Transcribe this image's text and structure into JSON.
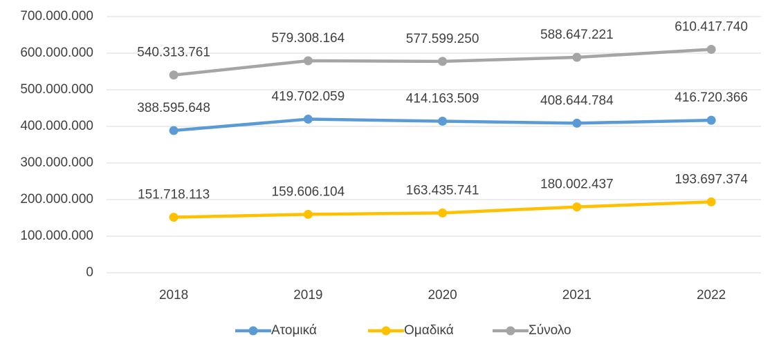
{
  "chart_data": {
    "type": "line",
    "categories": [
      "2018",
      "2019",
      "2020",
      "2021",
      "2022"
    ],
    "series": [
      {
        "name": "Ατομικά",
        "color": "#5b9bd5",
        "values": [
          388595648,
          419702059,
          414163509,
          408644784,
          416720366
        ],
        "value_labels": [
          "388.595.648",
          "419.702.059",
          "414.163.509",
          "408.644.784",
          "416.720.366"
        ]
      },
      {
        "name": "Ομαδικά",
        "color": "#ffc000",
        "values": [
          151718113,
          159606104,
          163435741,
          180002437,
          193697374
        ],
        "value_labels": [
          "151.718.113",
          "159.606.104",
          "163.435.741",
          "180.002.437",
          "193.697.374"
        ]
      },
      {
        "name": "Σύνολο",
        "color": "#a5a5a5",
        "values": [
          540313761,
          579308164,
          577599250,
          588647221,
          610417740
        ],
        "value_labels": [
          "540.313.761",
          "579.308.164",
          "577.599.250",
          "588.647.221",
          "610.417.740"
        ]
      }
    ],
    "ylim": [
      0,
      700000000
    ],
    "yticks": [
      0,
      {
        "value": 100000000,
        "label": "100.000.000"
      },
      {
        "value": 200000000,
        "label": "200.000.000"
      },
      {
        "value": 300000000,
        "label": "300.000.000"
      },
      {
        "value": 400000000,
        "label": "400.000.000"
      },
      {
        "value": 500000000,
        "label": "500.000.000"
      },
      {
        "value": 600000000,
        "label": "600.000.000"
      },
      {
        "value": 700000000,
        "label": "700.000.000"
      }
    ],
    "grid": true,
    "legend": "bottom"
  }
}
